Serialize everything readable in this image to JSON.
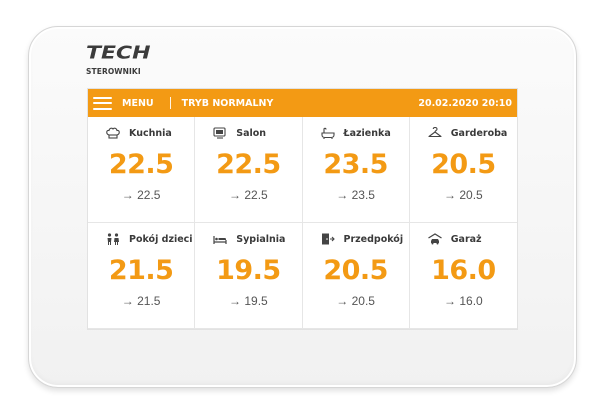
{
  "brand": {
    "name": "TECH",
    "subtitle": "STEROWNIKI"
  },
  "topbar": {
    "menu_label": "MENU",
    "mode_label": "TRYB NORMALNY",
    "datetime": "20.02.2020 20:10",
    "accent_color": "#f39a14"
  },
  "rooms": [
    {
      "name": "Kuchnia",
      "icon": "chef-hat-icon",
      "current": "22.5",
      "setpoint": "→ 22.5"
    },
    {
      "name": "Salon",
      "icon": "tv-icon",
      "current": "22.5",
      "setpoint": "→ 22.5"
    },
    {
      "name": "Łazienka",
      "icon": "bathtub-icon",
      "current": "23.5",
      "setpoint": "→ 23.5"
    },
    {
      "name": "Garderoba",
      "icon": "hanger-icon",
      "current": "20.5",
      "setpoint": "→ 20.5"
    },
    {
      "name": "Pokój dzieci",
      "icon": "children-icon",
      "current": "21.5",
      "setpoint": "→ 21.5"
    },
    {
      "name": "Sypialnia",
      "icon": "bed-icon",
      "current": "19.5",
      "setpoint": "→ 19.5"
    },
    {
      "name": "Przedpokój",
      "icon": "door-icon",
      "current": "20.5",
      "setpoint": "→ 20.5"
    },
    {
      "name": "Garaż",
      "icon": "garage-icon",
      "current": "16.0",
      "setpoint": "→ 16.0"
    }
  ]
}
